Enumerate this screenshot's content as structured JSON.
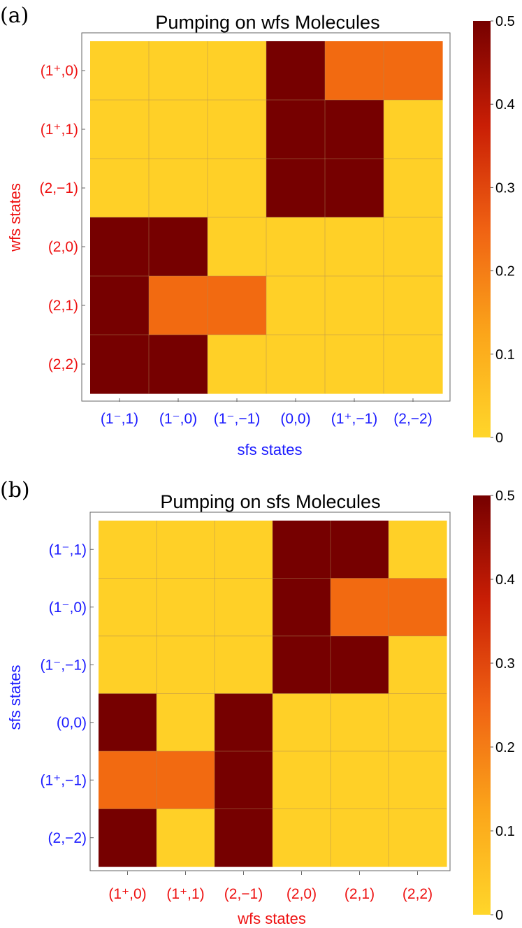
{
  "chart_data": [
    {
      "type": "heatmap",
      "panel_label": "(a)",
      "title": "Pumping on wfs Molecules",
      "xlabel": "sfs states",
      "ylabel": "wfs states",
      "x_label_color": "#1a1aff",
      "y_label_color": "#ee1111",
      "x_categories": [
        "(1⁻,1)",
        "(1⁻,0)",
        "(1⁻,−1)",
        "(0,0)",
        "(1⁺,−1)",
        "(2,−2)"
      ],
      "y_categories": [
        "(1⁺,0)",
        "(1⁺,1)",
        "(2,−1)",
        "(2,0)",
        "(2,1)",
        "(2,2)"
      ],
      "values": [
        [
          0,
          0,
          0,
          0.5,
          0.25,
          0.25
        ],
        [
          0,
          0,
          0,
          0.5,
          0.5,
          0
        ],
        [
          0,
          0,
          0,
          0.5,
          0.5,
          0
        ],
        [
          0.5,
          0.5,
          0,
          0,
          0,
          0
        ],
        [
          0.5,
          0.25,
          0.25,
          0,
          0,
          0
        ],
        [
          0.5,
          0.5,
          0,
          0,
          0,
          0
        ]
      ],
      "colorbar": {
        "range": [
          0,
          0.5
        ],
        "ticks": [
          "0",
          "0.1",
          "0.2",
          "0.3",
          "0.4",
          "0.5"
        ]
      },
      "grid": true
    },
    {
      "type": "heatmap",
      "panel_label": "(b)",
      "title": "Pumping on sfs Molecules",
      "xlabel": "wfs states",
      "ylabel": "sfs states",
      "x_label_color": "#ee1111",
      "y_label_color": "#1a1aff",
      "x_categories": [
        "(1⁺,0)",
        "(1⁺,1)",
        "(2,−1)",
        "(2,0)",
        "(2,1)",
        "(2,2)"
      ],
      "y_categories": [
        "(1⁻,1)",
        "(1⁻,0)",
        "(1⁻,−1)",
        "(0,0)",
        "(1⁺,−1)",
        "(2,−2)"
      ],
      "values": [
        [
          0,
          0,
          0,
          0.5,
          0.5,
          0
        ],
        [
          0,
          0,
          0,
          0.5,
          0.25,
          0.25
        ],
        [
          0,
          0,
          0,
          0.5,
          0.5,
          0
        ],
        [
          0.5,
          0,
          0.5,
          0,
          0,
          0
        ],
        [
          0.25,
          0.25,
          0.5,
          0,
          0,
          0
        ],
        [
          0.5,
          0,
          0.5,
          0,
          0,
          0
        ]
      ],
      "colorbar": {
        "range": [
          0,
          0.5
        ],
        "ticks": [
          "0",
          "0.1",
          "0.2",
          "0.3",
          "0.4",
          "0.5"
        ]
      },
      "grid": true
    }
  ]
}
